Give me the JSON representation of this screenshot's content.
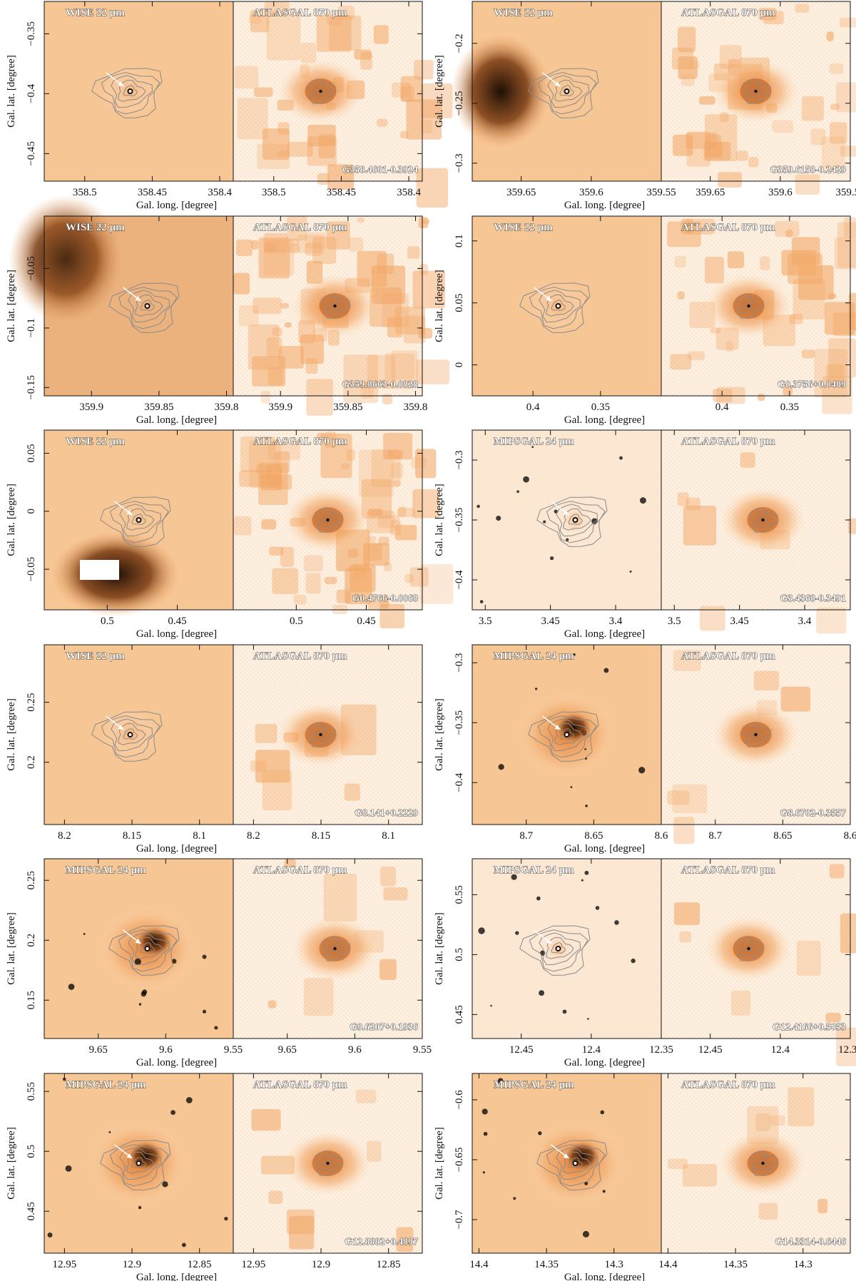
{
  "figure": {
    "xlabel": "Gal. long. [degree]",
    "ylabel": "Gal. lat. [degree]",
    "contour_color": "#8a8a8a",
    "colors": {
      "bg_light": "#fdf2e6",
      "orange": "#f0a35e",
      "dark": "#1e0f05",
      "star": "#000000"
    }
  },
  "chart_data": [
    {
      "type": "image",
      "source": "G358.4601-0.3924",
      "ir_label": "WISE 22 μm",
      "mm_label": "ATLASGAL 870 μm",
      "xticks": [
        358.5,
        358.45,
        358.4
      ],
      "xtick_labels": [
        "358.5",
        "358.45",
        "358.4"
      ],
      "xlim": [
        358.53,
        358.39
      ],
      "yticks": [
        -0.35,
        -0.4,
        -0.45
      ],
      "ytick_labels": [
        "−0.35",
        "−0.4",
        "−0.45"
      ],
      "ylim": [
        -0.473,
        -0.323
      ],
      "ir_bg": "light-orange",
      "mm_bg": "patchy"
    },
    {
      "type": "image",
      "source": "G359.6158-0.2429",
      "ir_label": "WISE 22 μm",
      "mm_label": "ATLASGAL 870 μm",
      "xticks": [
        359.65,
        359.6,
        359.55
      ],
      "xtick_labels": [
        "359.65",
        "359.6",
        "359.55"
      ],
      "xlim": [
        359.685,
        359.55
      ],
      "yticks": [
        -0.2,
        -0.25,
        -0.3
      ],
      "ytick_labels": [
        "−0.2",
        "−0.25",
        "−0.3"
      ],
      "ylim": [
        -0.315,
        -0.165
      ],
      "ir_bg": "orange-dark-left",
      "mm_bg": "patchy"
    },
    {
      "type": "image",
      "source": "G359.8663-0.0828",
      "ir_label": "WISE 22 μm",
      "mm_label": "ATLASGAL 870 μm",
      "xticks": [
        359.9,
        359.85,
        359.8
      ],
      "xtick_labels": [
        "359.9",
        "359.85",
        "359.8"
      ],
      "xlim": [
        359.935,
        359.795
      ],
      "yticks": [
        -0.05,
        -0.1,
        -0.15
      ],
      "ytick_labels": [
        "−0.05",
        "−0.1",
        "−0.15"
      ],
      "ylim": [
        -0.157,
        -0.006
      ],
      "ir_bg": "dark-left",
      "mm_bg": "dense"
    },
    {
      "type": "image",
      "source": "G0.3756+0.0409",
      "ir_label": "WISE 22 μm",
      "mm_label": "ATLASGAL 870 μm",
      "xticks": [
        0.4,
        0.35
      ],
      "xtick_labels": [
        "0.4",
        "0.35"
      ],
      "xlim": [
        0.445,
        0.305
      ],
      "yticks": [
        0.1,
        0.05,
        0.0
      ],
      "ytick_labels": [
        "0.1",
        "0.05",
        "0"
      ],
      "ylim": [
        -0.025,
        0.12
      ],
      "ir_bg": "light-orange",
      "mm_bg": "patchy"
    },
    {
      "type": "image",
      "source": "G0.4766-0.0068",
      "ir_label": "WISE 22 μm",
      "mm_label": "ATLASGAL 870 μm",
      "xticks": [
        0.5,
        0.45
      ],
      "xtick_labels": [
        "0.5",
        "0.45"
      ],
      "xlim": [
        0.545,
        0.41
      ],
      "yticks": [
        0.05,
        0.0,
        -0.05
      ],
      "ytick_labels": [
        "0.05",
        "0",
        "−0.05"
      ],
      "ylim": [
        -0.085,
        0.07
      ],
      "ir_bg": "dark-bottom",
      "mm_bg": "dense"
    },
    {
      "type": "image",
      "source": "G3.4368-0.3491",
      "ir_label": "MIPSGAL 24 μm",
      "mm_label": "ATLASGAL 870 μm",
      "xticks": [
        3.5,
        3.45,
        3.4
      ],
      "xtick_labels": [
        "3.5",
        "3.45",
        "3.4"
      ],
      "xlim": [
        3.51,
        3.365
      ],
      "yticks": [
        -0.3,
        -0.35,
        -0.4
      ],
      "ytick_labels": [
        "−0.3",
        "−0.35",
        "−0.4"
      ],
      "ylim": [
        -0.425,
        -0.275
      ],
      "ir_bg": "light",
      "mm_bg": "light"
    },
    {
      "type": "image",
      "source": "G8.141+0.2229",
      "ir_label": "WISE 22 μm",
      "mm_label": "ATLASGAL 870 μm",
      "xticks": [
        8.2,
        8.15,
        8.1
      ],
      "xtick_labels": [
        "8.2",
        "8.15",
        "8.1"
      ],
      "xlim": [
        8.215,
        8.075
      ],
      "yticks": [
        0.25,
        0.2
      ],
      "ytick_labels": [
        "0.25",
        "0.2"
      ],
      "ylim": [
        0.148,
        0.298
      ],
      "ir_bg": "light-orange",
      "mm_bg": "light"
    },
    {
      "type": "image",
      "source": "G8.6702-0.3557",
      "ir_label": "MIPSGAL 24 μm",
      "mm_label": "ATLASGAL 870 μm",
      "xticks": [
        8.7,
        8.65,
        8.6
      ],
      "xtick_labels": [
        "8.7",
        "8.65",
        "8.6"
      ],
      "xlim": [
        8.74,
        8.6
      ],
      "yticks": [
        -0.3,
        -0.35,
        -0.4
      ],
      "ytick_labels": [
        "−0.3",
        "−0.35",
        "−0.4"
      ],
      "ylim": [
        -0.435,
        -0.285
      ],
      "ir_bg": "orange-stars",
      "mm_bg": "light"
    },
    {
      "type": "image",
      "source": "G9.6207+0.1936",
      "ir_label": "MIPSGAL 24 μm",
      "mm_label": "ATLASGAL 870 μm",
      "xticks": [
        9.65,
        9.6,
        9.55
      ],
      "xtick_labels": [
        "9.65",
        "9.6",
        "9.55"
      ],
      "xlim": [
        9.69,
        9.55
      ],
      "yticks": [
        0.25,
        0.2,
        0.15
      ],
      "ytick_labels": [
        "0.25",
        "0.2",
        "0.15"
      ],
      "ylim": [
        0.118,
        0.268
      ],
      "ir_bg": "orange-stars",
      "mm_bg": "light"
    },
    {
      "type": "image",
      "source": "G12.4166+0.5053",
      "ir_label": "MIPSGAL 24 μm",
      "mm_label": "ATLASGAL 870 μm",
      "xticks": [
        12.45,
        12.4,
        12.35
      ],
      "xtick_labels": [
        "12.45",
        "12.4",
        "12.35"
      ],
      "xlim": [
        12.485,
        12.35
      ],
      "yticks": [
        0.55,
        0.5,
        0.45
      ],
      "ytick_labels": [
        "0.55",
        "0.5",
        "0.45"
      ],
      "ylim": [
        0.43,
        0.58
      ],
      "ir_bg": "light",
      "mm_bg": "light"
    },
    {
      "type": "image",
      "source": "G12.8882+0.4897",
      "ir_label": "MIPSGAL 24 μm",
      "mm_label": "ATLASGAL 870 μm",
      "xticks": [
        12.95,
        12.9,
        12.85
      ],
      "xtick_labels": [
        "12.95",
        "12.9",
        "12.85"
      ],
      "xlim": [
        12.965,
        12.825
      ],
      "yticks": [
        0.55,
        0.5,
        0.45
      ],
      "ytick_labels": [
        "0.55",
        "0.5",
        "0.45"
      ],
      "ylim": [
        0.415,
        0.565
      ],
      "ir_bg": "orange-stars",
      "mm_bg": "light"
    },
    {
      "type": "image",
      "source": "G14.3314-0.6446",
      "ir_label": "MIPSGAL 24 μm",
      "mm_label": "ATLASGAL 870 μm",
      "xticks": [
        14.4,
        14.35,
        14.3
      ],
      "xtick_labels": [
        "14.4",
        "14.35",
        "14.3"
      ],
      "xlim": [
        14.405,
        14.265
      ],
      "yticks": [
        -0.6,
        -0.65,
        -0.7
      ],
      "ytick_labels": [
        "−0.6",
        "−0.65",
        "−0.7"
      ],
      "ylim": [
        -0.728,
        -0.578
      ],
      "ir_bg": "orange-stars",
      "mm_bg": "light"
    }
  ]
}
